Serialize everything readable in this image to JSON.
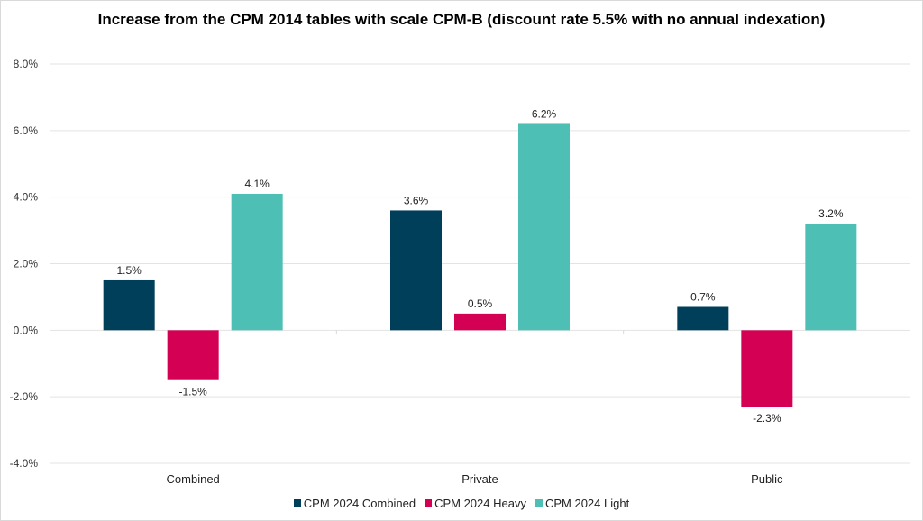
{
  "chart_data": {
    "type": "bar",
    "title": "Increase from the CPM 2014 tables with scale CPM-B (discount rate 5.5% with no annual indexation)",
    "xlabel": "",
    "ylabel": "",
    "categories": [
      "Combined",
      "Private",
      "Public"
    ],
    "series": [
      {
        "name": "CPM 2024 Combined",
        "color": "#003f5a",
        "values": [
          1.5,
          3.6,
          0.7
        ],
        "labels": [
          "1.5%",
          "3.6%",
          "0.7%"
        ]
      },
      {
        "name": "CPM 2024 Heavy",
        "color": "#d30054",
        "values": [
          -1.5,
          0.5,
          -2.3
        ],
        "labels": [
          "-1.5%",
          "0.5%",
          "-2.3%"
        ]
      },
      {
        "name": "CPM 2024 Light",
        "color": "#4dbfb5",
        "values": [
          4.1,
          6.2,
          3.2
        ],
        "labels": [
          "4.1%",
          "6.2%",
          "3.2%"
        ]
      }
    ],
    "ylim": [
      -4.0,
      8.0
    ],
    "yticks": [
      8.0,
      6.0,
      4.0,
      2.0,
      0.0,
      -2.0,
      -4.0
    ],
    "ytick_labels": [
      "8.0%",
      "6.0%",
      "4.0%",
      "2.0%",
      "0.0%",
      "-2.0%",
      "-4.0%"
    ],
    "grid": true,
    "legend_position": "bottom"
  }
}
